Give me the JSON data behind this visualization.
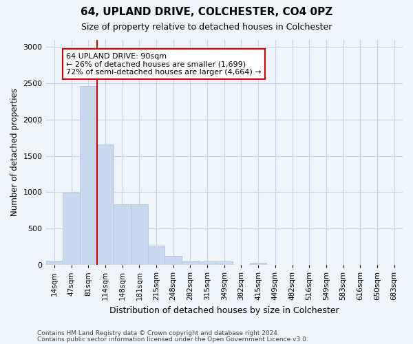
{
  "title": "64, UPLAND DRIVE, COLCHESTER, CO4 0PZ",
  "subtitle": "Size of property relative to detached houses in Colchester",
  "xlabel": "Distribution of detached houses by size in Colchester",
  "ylabel": "Number of detached properties",
  "categories": [
    "14sqm",
    "47sqm",
    "81sqm",
    "114sqm",
    "148sqm",
    "181sqm",
    "215sqm",
    "248sqm",
    "282sqm",
    "315sqm",
    "349sqm",
    "382sqm",
    "415sqm",
    "449sqm",
    "482sqm",
    "516sqm",
    "549sqm",
    "583sqm",
    "616sqm",
    "650sqm",
    "683sqm"
  ],
  "values": [
    55,
    990,
    2465,
    1660,
    830,
    830,
    265,
    125,
    55,
    50,
    50,
    0,
    30,
    0,
    0,
    0,
    0,
    0,
    0,
    0,
    0
  ],
  "bar_color": "#c8d9ee",
  "bar_edge_color": "#b0c4de",
  "vline_position": 2.5,
  "vline_color": "#cc0000",
  "annotation_text": "64 UPLAND DRIVE: 90sqm\n← 26% of detached houses are smaller (1,699)\n72% of semi-detached houses are larger (4,664) →",
  "annotation_box_facecolor": "#ffffff",
  "annotation_box_edgecolor": "#cc0000",
  "ylim": [
    0,
    3100
  ],
  "yticks": [
    0,
    500,
    1000,
    1500,
    2000,
    2500,
    3000
  ],
  "grid_color": "#c8d4e8",
  "footer_line1": "Contains HM Land Registry data © Crown copyright and database right 2024.",
  "footer_line2": "Contains public sector information licensed under the Open Government Licence v3.0.",
  "bg_color": "#f0f4fb"
}
